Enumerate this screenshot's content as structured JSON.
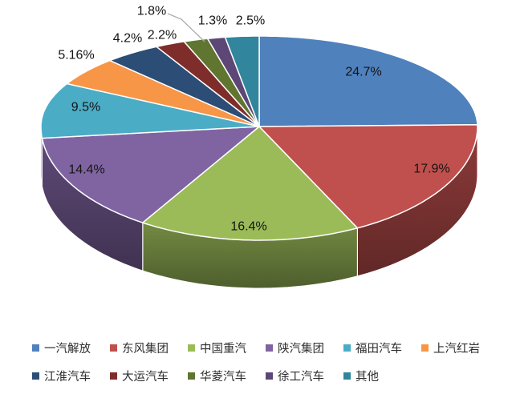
{
  "chart_data": {
    "type": "pie",
    "style": "3d",
    "title": "",
    "legend_position": "bottom",
    "legend_rows": [
      6,
      5
    ],
    "background": "#FFFFFF",
    "slices": [
      {
        "label": "一汽解放",
        "value": 24.7,
        "display": "24.7%",
        "color": "#4F81BD"
      },
      {
        "label": "东风集团",
        "value": 17.9,
        "display": "17.9%",
        "color": "#C0504D"
      },
      {
        "label": "中国重汽",
        "value": 16.4,
        "display": "16.4%",
        "color": "#9BBB59"
      },
      {
        "label": "陕汽集团",
        "value": 14.4,
        "display": "14.4%",
        "color": "#8064A2"
      },
      {
        "label": "福田汽车",
        "value": 9.5,
        "display": "9.5%",
        "color": "#4BACC6"
      },
      {
        "label": "上汽红岩",
        "value": 5.16,
        "display": "5.16%",
        "color": "#F79646"
      },
      {
        "label": "江淮汽车",
        "value": 4.2,
        "display": "4.2%",
        "color": "#2C4D75"
      },
      {
        "label": "大运汽车",
        "value": 2.2,
        "display": "2.2%",
        "color": "#7F2D2A"
      },
      {
        "label": "华菱汽车",
        "value": 1.8,
        "display": "1.8%",
        "color": "#5F7530"
      },
      {
        "label": "徐工汽车",
        "value": 1.3,
        "display": "1.3%",
        "color": "#5C4776"
      },
      {
        "label": "其他",
        "value": 2.5,
        "display": "2.5%",
        "color": "#31859C"
      }
    ],
    "label_line_color": "#ABABAB",
    "slice_border_color": "#FFFFFF"
  }
}
